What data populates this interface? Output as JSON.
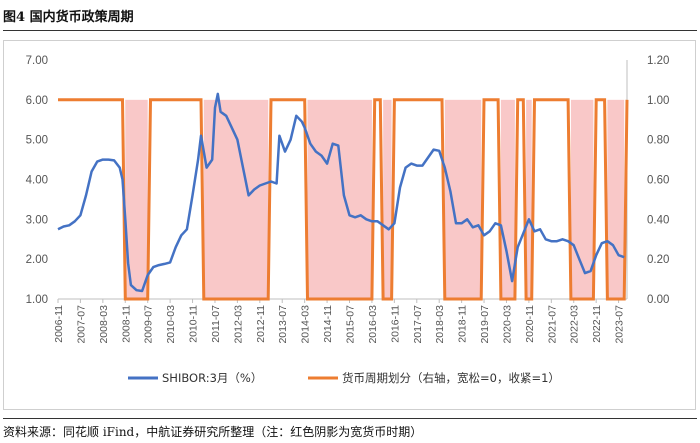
{
  "header": {
    "title": "图4  国内货币政策周期"
  },
  "footer": {
    "source": "资料来源：同花顺 iFind，中航证券研究所整理（注：红色阴影为宽货币时期）"
  },
  "colors": {
    "shibor": "#4472c4",
    "cycle": "#ed7d31",
    "shade": "#f9c8c8",
    "axis": "#bfbfbf"
  },
  "chart_data": {
    "type": "line",
    "title": "",
    "x": [
      "2006-11",
      "2007-07",
      "2008-03",
      "2008-11",
      "2009-07",
      "2010-03",
      "2010-11",
      "2011-07",
      "2012-03",
      "2012-11",
      "2013-07",
      "2014-03",
      "2014-11",
      "2015-07",
      "2016-03",
      "2016-11",
      "2017-07",
      "2018-03",
      "2018-11",
      "2019-07",
      "2020-03",
      "2020-11",
      "2021-07",
      "2022-03",
      "2022-11",
      "2023-07"
    ],
    "x_start": "2006-11",
    "x_end": "2023-10",
    "y_left": {
      "ylim": [
        1.0,
        7.0
      ],
      "ticks": [
        "1.00",
        "2.00",
        "3.00",
        "4.00",
        "5.00",
        "6.00",
        "7.00"
      ]
    },
    "y_right": {
      "ylim": [
        0.0,
        1.2
      ],
      "ticks": [
        "0.00",
        "0.20",
        "0.40",
        "0.60",
        "0.80",
        "1.00",
        "1.20"
      ]
    },
    "series": [
      {
        "name": "SHIBOR:3月（%）",
        "axis": "left",
        "points": [
          [
            "2006-11",
            2.75
          ],
          [
            "2007-01",
            2.82
          ],
          [
            "2007-03",
            2.85
          ],
          [
            "2007-05",
            2.95
          ],
          [
            "2007-07",
            3.1
          ],
          [
            "2007-09",
            3.6
          ],
          [
            "2007-11",
            4.2
          ],
          [
            "2008-01",
            4.45
          ],
          [
            "2008-03",
            4.5
          ],
          [
            "2008-05",
            4.5
          ],
          [
            "2008-07",
            4.48
          ],
          [
            "2008-09",
            4.3
          ],
          [
            "2008-10",
            4.0
          ],
          [
            "2008-11",
            3.0
          ],
          [
            "2008-12",
            1.9
          ],
          [
            "2009-01",
            1.35
          ],
          [
            "2009-03",
            1.22
          ],
          [
            "2009-05",
            1.2
          ],
          [
            "2009-07",
            1.6
          ],
          [
            "2009-09",
            1.8
          ],
          [
            "2009-11",
            1.85
          ],
          [
            "2010-01",
            1.88
          ],
          [
            "2010-03",
            1.92
          ],
          [
            "2010-05",
            2.3
          ],
          [
            "2010-07",
            2.6
          ],
          [
            "2010-09",
            2.75
          ],
          [
            "2010-11",
            3.6
          ],
          [
            "2011-01",
            4.5
          ],
          [
            "2011-02",
            5.1
          ],
          [
            "2011-04",
            4.3
          ],
          [
            "2011-06",
            4.5
          ],
          [
            "2011-07",
            5.8
          ],
          [
            "2011-08",
            6.15
          ],
          [
            "2011-09",
            5.7
          ],
          [
            "2011-11",
            5.6
          ],
          [
            "2012-01",
            5.3
          ],
          [
            "2012-03",
            5.0
          ],
          [
            "2012-05",
            4.3
          ],
          [
            "2012-07",
            3.6
          ],
          [
            "2012-09",
            3.75
          ],
          [
            "2012-11",
            3.85
          ],
          [
            "2013-01",
            3.9
          ],
          [
            "2013-03",
            3.95
          ],
          [
            "2013-05",
            3.9
          ],
          [
            "2013-06",
            5.1
          ],
          [
            "2013-08",
            4.7
          ],
          [
            "2013-10",
            5.0
          ],
          [
            "2013-12",
            5.6
          ],
          [
            "2014-02",
            5.45
          ],
          [
            "2014-03",
            5.3
          ],
          [
            "2014-05",
            4.9
          ],
          [
            "2014-07",
            4.7
          ],
          [
            "2014-09",
            4.6
          ],
          [
            "2014-11",
            4.4
          ],
          [
            "2015-01",
            4.9
          ],
          [
            "2015-03",
            4.85
          ],
          [
            "2015-05",
            3.6
          ],
          [
            "2015-07",
            3.1
          ],
          [
            "2015-09",
            3.05
          ],
          [
            "2015-11",
            3.1
          ],
          [
            "2016-01",
            3.0
          ],
          [
            "2016-03",
            2.95
          ],
          [
            "2016-05",
            2.95
          ],
          [
            "2016-07",
            2.85
          ],
          [
            "2016-09",
            2.75
          ],
          [
            "2016-11",
            2.9
          ],
          [
            "2017-01",
            3.8
          ],
          [
            "2017-03",
            4.3
          ],
          [
            "2017-05",
            4.4
          ],
          [
            "2017-07",
            4.35
          ],
          [
            "2017-09",
            4.35
          ],
          [
            "2017-11",
            4.55
          ],
          [
            "2018-01",
            4.75
          ],
          [
            "2018-03",
            4.72
          ],
          [
            "2018-05",
            4.3
          ],
          [
            "2018-07",
            3.7
          ],
          [
            "2018-09",
            2.9
          ],
          [
            "2018-11",
            2.9
          ],
          [
            "2019-01",
            3.0
          ],
          [
            "2019-03",
            2.8
          ],
          [
            "2019-05",
            2.85
          ],
          [
            "2019-07",
            2.6
          ],
          [
            "2019-09",
            2.7
          ],
          [
            "2019-11",
            2.9
          ],
          [
            "2020-01",
            2.85
          ],
          [
            "2020-03",
            2.2
          ],
          [
            "2020-05",
            1.45
          ],
          [
            "2020-07",
            2.3
          ],
          [
            "2020-09",
            2.65
          ],
          [
            "2020-11",
            3.0
          ],
          [
            "2021-01",
            2.7
          ],
          [
            "2021-03",
            2.75
          ],
          [
            "2021-05",
            2.5
          ],
          [
            "2021-07",
            2.45
          ],
          [
            "2021-09",
            2.45
          ],
          [
            "2021-11",
            2.5
          ],
          [
            "2022-01",
            2.45
          ],
          [
            "2022-03",
            2.35
          ],
          [
            "2022-05",
            2.0
          ],
          [
            "2022-07",
            1.65
          ],
          [
            "2022-09",
            1.7
          ],
          [
            "2022-11",
            2.1
          ],
          [
            "2023-01",
            2.4
          ],
          [
            "2023-03",
            2.45
          ],
          [
            "2023-05",
            2.35
          ],
          [
            "2023-07",
            2.1
          ],
          [
            "2023-09",
            2.05
          ]
        ]
      },
      {
        "name": "货币周期划分（右轴，宽松=0，收紧=1）",
        "axis": "right",
        "segments": [
          [
            "2006-11",
            1
          ],
          [
            "2008-10",
            1
          ],
          [
            "2008-11",
            0
          ],
          [
            "2009-07",
            0
          ],
          [
            "2009-08",
            1
          ],
          [
            "2011-02",
            1
          ],
          [
            "2011-03",
            0
          ],
          [
            "2013-02",
            0
          ],
          [
            "2013-03",
            1
          ],
          [
            "2014-03",
            1
          ],
          [
            "2014-04",
            0
          ],
          [
            "2016-03",
            0
          ],
          [
            "2016-04",
            1
          ],
          [
            "2016-06",
            1
          ],
          [
            "2016-07",
            0
          ],
          [
            "2016-10",
            0
          ],
          [
            "2016-11",
            1
          ],
          [
            "2018-04",
            1
          ],
          [
            "2018-05",
            0
          ],
          [
            "2019-06",
            0
          ],
          [
            "2019-07",
            1
          ],
          [
            "2019-12",
            1
          ],
          [
            "2020-01",
            0
          ],
          [
            "2020-06",
            0
          ],
          [
            "2020-07",
            1
          ],
          [
            "2020-09",
            1
          ],
          [
            "2020-10",
            0
          ],
          [
            "2020-12",
            0
          ],
          [
            "2021-01",
            1
          ],
          [
            "2022-01",
            1
          ],
          [
            "2022-02",
            0
          ],
          [
            "2022-10",
            0
          ],
          [
            "2022-11",
            1
          ],
          [
            "2023-02",
            1
          ],
          [
            "2023-03",
            0
          ],
          [
            "2023-09",
            0
          ],
          [
            "2023-10",
            1
          ]
        ]
      }
    ],
    "legend": {
      "placement": "bottom"
    }
  }
}
